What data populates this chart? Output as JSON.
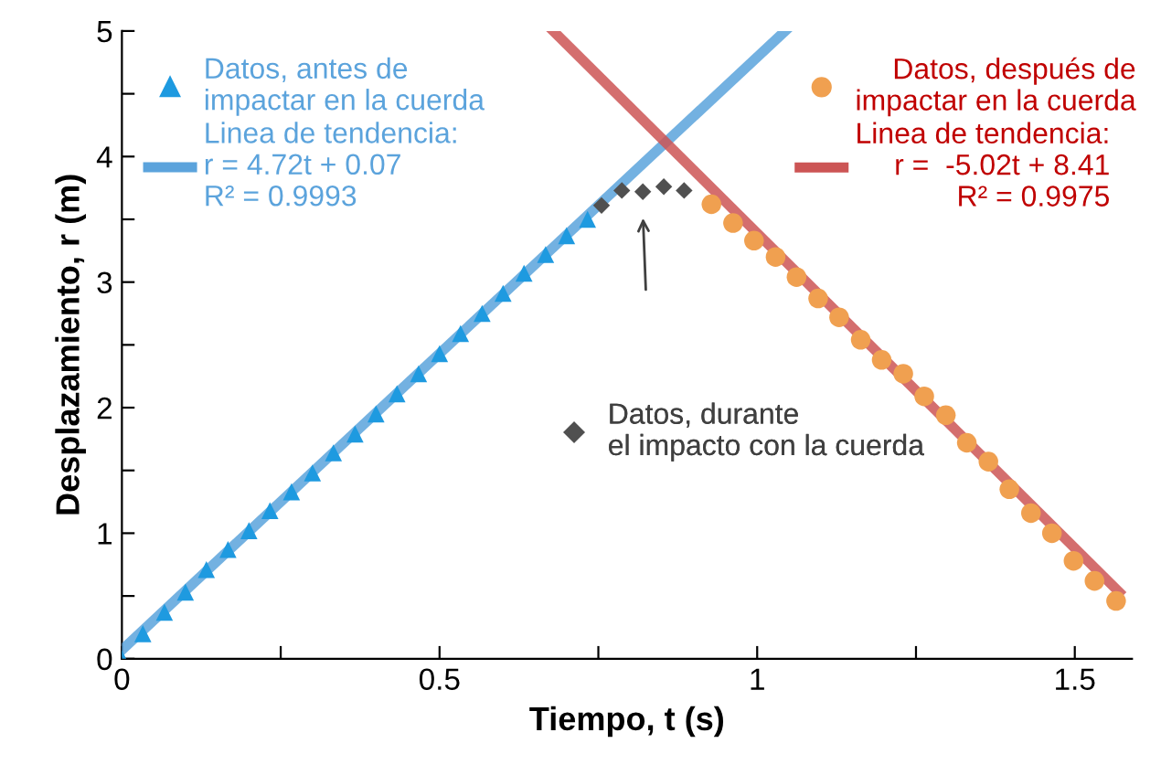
{
  "chart_data": {
    "type": "scatter",
    "xlabel": "Tiempo, t (s)",
    "ylabel": "Desplazamiento, r (m)",
    "xlim": [
      0,
      1.59
    ],
    "ylim": [
      0,
      5
    ],
    "xticks": [
      0,
      {
        "value": 0.25,
        "label": null
      },
      0.5,
      {
        "value": 0.75,
        "label": null
      },
      1,
      {
        "value": 1.25,
        "label": null
      },
      1.5
    ],
    "yticks": [
      0,
      {
        "value": 0.5,
        "label": null
      },
      1,
      {
        "value": 1.5,
        "label": null
      },
      2,
      {
        "value": 2.5,
        "label": null
      },
      3,
      {
        "value": 3.5,
        "label": null
      },
      4,
      {
        "value": 4.5,
        "label": null
      },
      5
    ],
    "grid": false,
    "legend": "top",
    "series": [
      {
        "name": "Datos, antes de\nimpactar en la cuerda",
        "color": "#1e9ae0",
        "marker": "triangle",
        "x": [
          0,
          0.033,
          0.067,
          0.1,
          0.133,
          0.167,
          0.2,
          0.233,
          0.267,
          0.3,
          0.333,
          0.367,
          0.4,
          0.433,
          0.467,
          0.5,
          0.533,
          0.567,
          0.6,
          0.633,
          0.667,
          0.7,
          0.733
        ],
        "values": [
          0,
          0.2,
          0.37,
          0.53,
          0.71,
          0.87,
          1.02,
          1.18,
          1.33,
          1.48,
          1.64,
          1.79,
          1.95,
          2.11,
          2.27,
          2.43,
          2.59,
          2.75,
          2.91,
          3.07,
          3.22,
          3.37,
          3.5
        ]
      },
      {
        "name": "Datos, durante\nel impacto con la cuerda",
        "color": "#505050",
        "marker": "diamond",
        "x": [
          0.755,
          0.787,
          0.82,
          0.853,
          0.885
        ],
        "values": [
          3.61,
          3.73,
          3.72,
          3.76,
          3.73
        ]
      },
      {
        "name": "Datos, después de\nimpactar en la cuerda",
        "color": "#f0a050",
        "marker": "circle",
        "x": [
          0.928,
          0.962,
          0.995,
          1.029,
          1.062,
          1.096,
          1.129,
          1.163,
          1.196,
          1.23,
          1.263,
          1.297,
          1.33,
          1.364,
          1.397,
          1.431,
          1.464,
          1.498,
          1.531,
          1.565
        ],
        "values": [
          3.62,
          3.47,
          3.33,
          3.2,
          3.04,
          2.87,
          2.72,
          2.54,
          2.38,
          2.27,
          2.09,
          1.94,
          1.72,
          1.57,
          1.35,
          1.16,
          1.0,
          0.78,
          0.62,
          0.46
        ]
      },
      {
        "type": "line",
        "name": "Linea de tendencia:\nr = 4.72t + 0.07\nR² = 0.9993",
        "color": "#5ba3dc",
        "x": [
          0,
          1.044
        ],
        "values": [
          0.07,
          5.0
        ]
      },
      {
        "type": "line",
        "name": "Linea de tendencia:\nr =  -5.02t + 8.41\nR² = 0.9975",
        "color": "#cc5555",
        "x": [
          0.679,
          1.57
        ],
        "values": [
          5.0,
          0.53
        ]
      }
    ]
  }
}
